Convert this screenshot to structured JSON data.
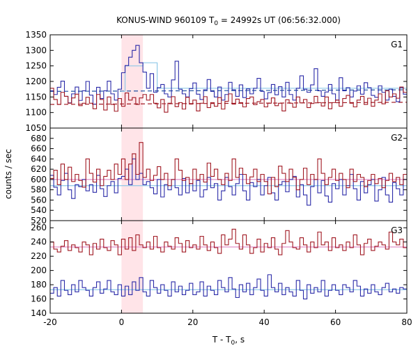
{
  "chart_data": {
    "type": "line",
    "title_main": "KONUS-WIND 960109 T",
    "title_sub": "0",
    "title_rest": " = 24992s UT (06:56:32.000)",
    "xlabel_main": "T - T",
    "xlabel_sub": "0",
    "xlabel_rest": ", s",
    "ylabel": "counts / sec",
    "xlim": [
      -20,
      80
    ],
    "x_ticks": [
      -20,
      0,
      20,
      40,
      60,
      80
    ],
    "highlight_interval": [
      0,
      6
    ],
    "panels": [
      {
        "label": "G1",
        "ylim": [
          1050,
          1350
        ],
        "y_ticks": [
          1050,
          1100,
          1150,
          1200,
          1250,
          1300,
          1350
        ],
        "bin_width": 1,
        "x_start": -20,
        "series": [
          {
            "color": "#2a2aa8",
            "values": [
              1170,
              1158,
              1181,
              1201,
              1152,
              1131,
              1160,
              1182,
              1139,
              1170,
              1200,
              1156,
              1127,
              1181,
              1145,
              1170,
              1201,
              1160,
              1140,
              1175,
              1228,
              1251,
              1278,
              1300,
              1316,
              1260,
              1230,
              1178,
              1225,
              1165,
              1180,
              1190,
              1160,
              1150,
              1205,
              1265,
              1175,
              1160,
              1150,
              1177,
              1195,
              1159,
              1142,
              1173,
              1206,
              1168,
              1150,
              1182,
              1140,
              1158,
              1197,
              1173,
              1152,
              1189,
              1148,
              1176,
              1160,
              1178,
              1210,
              1168,
              1144,
              1164,
              1190,
              1157,
              1183,
              1150,
              1197,
              1158,
              1140,
              1178,
              1218,
              1175,
              1165,
              1189,
              1241,
              1170,
              1152,
              1166,
              1190,
              1160,
              1140,
              1212,
              1170,
              1180,
              1150,
              1169,
              1186,
              1159,
              1196,
              1180,
              1155,
              1149,
              1186,
              1165,
              1140,
              1175,
              1152,
              1135,
              1180,
              1159
            ]
          },
          {
            "color": "#a01822",
            "values": [
              1178,
              1142,
              1126,
              1165,
              1152,
              1130,
              1147,
              1159,
              1122,
              1130,
              1149,
              1130,
              1112,
              1158,
              1142,
              1108,
              1150,
              1126,
              1104,
              1145,
              1120,
              1163,
              1140,
              1148,
              1126,
              1147,
              1158,
              1140,
              1158,
              1130,
              1115,
              1142,
              1101,
              1130,
              1151,
              1119,
              1132,
              1111,
              1149,
              1127,
              1140,
              1105,
              1130,
              1151,
              1116,
              1132,
              1120,
              1148,
              1111,
              1136,
              1160,
              1127,
              1143,
              1132,
              1118,
              1145,
              1150,
              1125,
              1135,
              1142,
              1118,
              1130,
              1147,
              1122,
              1130,
              1105,
              1141,
              1130,
              1117,
              1150,
              1131,
              1142,
              1116,
              1129,
              1152,
              1132,
              1121,
              1150,
              1112,
              1132,
              1140,
              1120,
              1145,
              1155,
              1130,
              1118,
              1140,
              1152,
              1126,
              1146,
              1120,
              1140,
              1160,
              1128,
              1170,
              1150,
              1160,
              1146,
              1182,
              1165
            ]
          },
          {
            "color": "#8ec8e8",
            "values": []
          }
        ],
        "step_light": {
          "color": "#8ec8e8",
          "points": [
            [
              0,
              1168
            ],
            [
              1,
              1250
            ],
            [
              6,
              1260
            ],
            [
              10,
              1178
            ],
            [
              80,
              1178
            ]
          ]
        },
        "fit_lines": [
          {
            "color": "#1e50a0",
            "dash": "6,4",
            "y0": 1168,
            "y1": 1173
          },
          {
            "color": "#a01822",
            "dash": "6,4",
            "y0": 1126,
            "y1": 1133
          }
        ]
      },
      {
        "label": "G2",
        "ylim": [
          520,
          700
        ],
        "y_ticks": [
          520,
          540,
          560,
          580,
          600,
          620,
          640,
          660,
          680
        ],
        "bin_width": 1,
        "x_start": -20,
        "series": [
          {
            "color": "#2a2aa8",
            "values": [
              608,
              585,
              570,
              598,
              612,
              580,
              563,
              590,
              586,
              600,
              578,
              590,
              575,
              608,
              582,
              567,
              588,
              596,
              574,
              602,
              606,
              620,
              590,
              640,
              600,
              612,
              590,
              596,
              584,
              572,
              600,
              566,
              590,
              580,
              600,
              584,
              570,
              602,
              574,
              592,
              578,
              598,
              566,
              580,
              604,
              584,
              592,
              560,
              578,
              604,
              586,
              570,
              592,
              610,
              578,
              560,
              594,
              586,
              600,
              570,
              588,
              604,
              574,
              560,
              590,
              596,
              576,
              600,
              606,
              566,
              590,
              570,
              550,
              586,
              600,
              574,
              598,
              568,
              556,
              592,
              582,
              600,
              570,
              588,
              610,
              582,
              560,
              596,
              574,
              590,
              600,
              558,
              580,
              604,
              570,
              556,
              594,
              582,
              570,
              600
            ]
          },
          {
            "color": "#a01822",
            "values": [
              602,
              618,
              590,
              630,
              600,
              624,
              596,
              610,
              598,
              585,
              640,
              612,
              595,
              620,
              588,
              606,
              618,
              600,
              630,
              610,
              640,
              600,
              630,
              650,
              610,
              672,
              604,
              620,
              598,
              608,
              625,
              600,
              612,
              588,
              600,
              640,
              618,
              598,
              604,
              592,
              620,
              600,
              610,
              595,
              632,
              606,
              620,
              600,
              590,
              612,
              598,
              640,
              604,
              622,
              610,
              592,
              605,
              620,
              596,
              610,
              596,
              572,
              604,
              586,
              626,
              612,
              596,
              620,
              604,
              580,
              600,
              622,
              590,
              610,
              600,
              640,
              612,
              590,
              604,
              620,
              598,
              612,
              600,
              584,
              620,
              596,
              610,
              604,
              586,
              598,
              610,
              592,
              602,
              584,
              598,
              612,
              596,
              604,
              590,
              610
            ]
          }
        ],
        "fit_lines": [
          {
            "color": "#8ec8e8",
            "dash": "",
            "y0": 588,
            "y1": 588
          },
          {
            "color": "#e090c8",
            "dash": "",
            "y0": 600,
            "y1": 600
          }
        ]
      },
      {
        "label": "G3",
        "ylim": [
          140,
          270
        ],
        "y_ticks": [
          140,
          160,
          180,
          200,
          220,
          240,
          260
        ],
        "bin_width": 1,
        "x_start": -20,
        "series": [
          {
            "color": "#a01822",
            "values": [
              240,
              230,
              226,
              234,
              242,
              228,
              236,
              232,
              226,
              240,
              236,
              222,
              238,
              230,
              244,
              232,
              228,
              242,
              236,
              222,
              244,
              230,
              246,
              228,
              250,
              236,
              232,
              240,
              230,
              248,
              232,
              226,
              240,
              234,
              230,
              246,
              238,
              226,
              242,
              232,
              236,
              230,
              248,
              236,
              228,
              240,
              232,
              224,
              250,
              236,
              244,
              258,
              238,
              230,
              250,
              236,
              224,
              232,
              244,
              226,
              238,
              232,
              246,
              230,
              222,
              238,
              256,
              240,
              232,
              230,
              246,
              236,
              226,
              240,
              232,
              254,
              236,
              240,
              228,
              246,
              232,
              236,
              228,
              240,
              232,
              250,
              236,
              222,
              238,
              244,
              228,
              234,
              240,
              236,
              230,
              254,
              240,
              236,
              244,
              232
            ]
          },
          {
            "color": "#2a2aa8",
            "values": [
              168,
              176,
              164,
              186,
              172,
              166,
              180,
              170,
              186,
              176,
              172,
              164,
              176,
              184,
              168,
              174,
              186,
              170,
              166,
              180,
              164,
              178,
              166,
              184,
              172,
              190,
              170,
              164,
              186,
              176,
              168,
              180,
              172,
              164,
              184,
              170,
              178,
              166,
              172,
              182,
              166,
              170,
              184,
              164,
              178,
              172,
              166,
              186,
              176,
              170,
              190,
              174,
              162,
              180,
              170,
              182,
              166,
              176,
              188,
              172,
              164,
              194,
              176,
              170,
              182,
              166,
              176,
              170,
              164,
              186,
              172,
              160,
              180,
              168,
              176,
              170,
              186,
              164,
              172,
              180,
              172,
              166,
              180,
              176,
              170,
              186,
              178,
              164,
              174,
              168,
              180,
              170,
              166,
              176,
              182,
              170,
              174,
              168,
              176,
              174
            ]
          }
        ],
        "fit_lines": [
          {
            "color": "#8ec8e8",
            "dash": "",
            "y0": 173,
            "y1": 173
          },
          {
            "color": "#e090c8",
            "dash": "",
            "y0": 233,
            "y1": 233
          }
        ]
      }
    ]
  }
}
